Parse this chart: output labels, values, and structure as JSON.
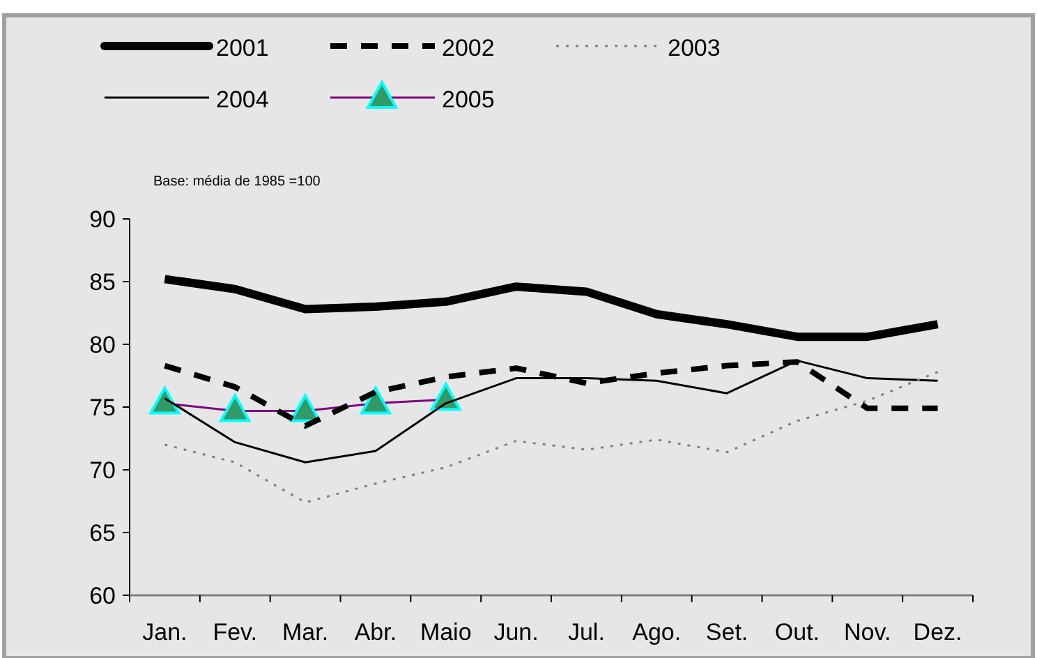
{
  "chart_data": {
    "type": "line",
    "categories": [
      "Jan.",
      "Fev.",
      "Mar.",
      "Abr.",
      "Maio",
      "Jun.",
      "Jul.",
      "Ago.",
      "Set.",
      "Out.",
      "Nov.",
      "Dez."
    ],
    "series": [
      {
        "name": "2001",
        "color": "#000000",
        "line_style": "solid",
        "values": [
          85.2,
          84.4,
          82.8,
          83.0,
          83.4,
          84.6,
          84.2,
          82.4,
          81.6,
          80.6,
          80.6,
          81.6
        ]
      },
      {
        "name": "2002",
        "color": "#000000",
        "line_style": "dashed",
        "values": [
          78.3,
          76.6,
          73.5,
          76.2,
          77.4,
          78.1,
          76.9,
          77.7,
          78.3,
          78.6,
          74.9,
          74.9
        ]
      },
      {
        "name": "2003",
        "color": "#808080",
        "line_style": "dotted",
        "values": [
          72.0,
          70.6,
          67.4,
          68.9,
          70.2,
          72.3,
          71.6,
          72.4,
          71.4,
          73.9,
          75.5,
          77.8
        ]
      },
      {
        "name": "2004",
        "color": "#000000",
        "line_style": "solid",
        "values": [
          75.7,
          72.2,
          70.6,
          71.5,
          75.3,
          77.3,
          77.3,
          77.1,
          76.1,
          78.7,
          77.3,
          77.1
        ]
      },
      {
        "name": "2005",
        "color": "#800080",
        "line_style": "solid",
        "marker": "triangle",
        "values": [
          75.3,
          74.7,
          74.7,
          75.3,
          75.6,
          null,
          null,
          null,
          null,
          null,
          null,
          null
        ]
      }
    ],
    "ylim": [
      60,
      90
    ],
    "yticks": [
      60,
      65,
      70,
      75,
      80,
      85,
      90
    ],
    "grid": false,
    "legend": "top",
    "annotations": [
      "Base: média de 1985 =100"
    ]
  }
}
